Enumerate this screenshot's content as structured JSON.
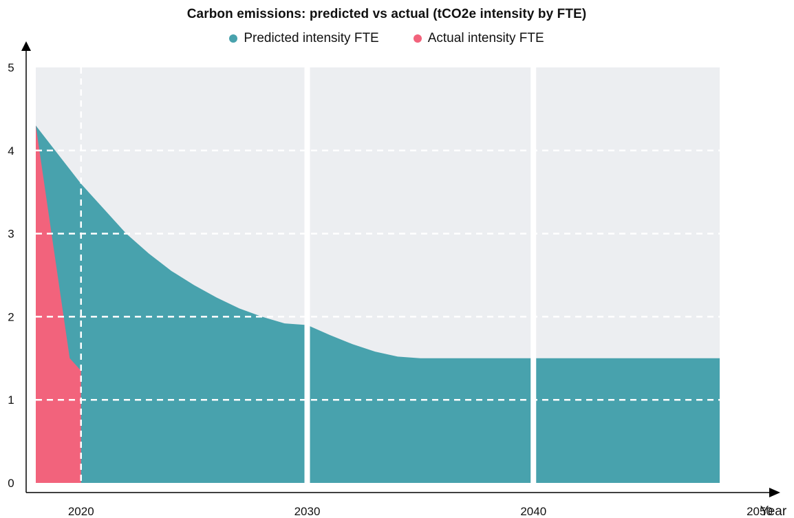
{
  "chart_data": {
    "type": "area",
    "title": "Carbon emissions: predicted vs actual (tCO2e intensity by FTE)",
    "xlabel": "Year",
    "ylabel": "",
    "xlim": [
      2018,
      2050
    ],
    "ylim": [
      0,
      5
    ],
    "x_ticks": [
      2020,
      2030,
      2040,
      2050
    ],
    "y_ticks": [
      0,
      1,
      2,
      3,
      4,
      5
    ],
    "legend_position": "top-center",
    "grid": {
      "horizontal": "dashed",
      "vertical": "solid at decade boundaries"
    },
    "series": [
      {
        "name": "Predicted intensity FTE",
        "color": "#48a2ad",
        "points": [
          [
            2018,
            4.3
          ],
          [
            2019,
            3.95
          ],
          [
            2020,
            3.6
          ],
          [
            2021,
            3.3
          ],
          [
            2022,
            3.0
          ],
          [
            2023,
            2.76
          ],
          [
            2024,
            2.55
          ],
          [
            2025,
            2.38
          ],
          [
            2026,
            2.23
          ],
          [
            2027,
            2.1
          ],
          [
            2028,
            2.0
          ],
          [
            2029,
            1.92
          ],
          [
            2030,
            1.9
          ],
          [
            2031,
            1.78
          ],
          [
            2032,
            1.67
          ],
          [
            2033,
            1.58
          ],
          [
            2034,
            1.52
          ],
          [
            2035,
            1.5
          ],
          [
            2040,
            1.5
          ],
          [
            2045,
            1.5
          ],
          [
            2050,
            1.5
          ]
        ]
      },
      {
        "name": "Actual intensity FTE",
        "color": "#f2637c",
        "points": [
          [
            2018,
            4.3
          ],
          [
            2019.5,
            1.5
          ],
          [
            2020,
            1.35
          ]
        ]
      }
    ]
  },
  "colors": {
    "plot_background": "#eceef1",
    "grid": "#ffffff",
    "axis": "#000000"
  }
}
